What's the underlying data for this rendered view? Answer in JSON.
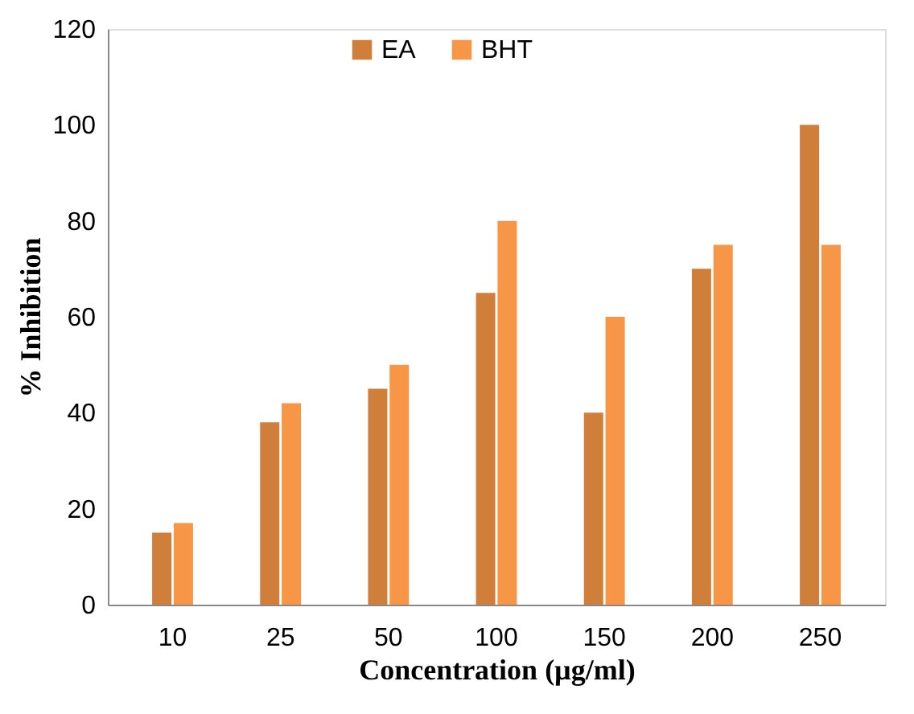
{
  "chart_data": {
    "type": "bar",
    "xlabel": "Concentration (µg/ml)",
    "ylabel": "% Inhibition",
    "categories": [
      "10",
      "25",
      "50",
      "100",
      "150",
      "200",
      "250"
    ],
    "series": [
      {
        "name": "EA",
        "color": "#d07f3a",
        "values": [
          15,
          38,
          45,
          65,
          40,
          70,
          100
        ]
      },
      {
        "name": "BHT",
        "color": "#f79646",
        "values": [
          17,
          42,
          50,
          80,
          60,
          75,
          75
        ]
      }
    ],
    "ylim": [
      0,
      120
    ],
    "yticks": [
      0,
      20,
      40,
      60,
      80,
      100,
      120
    ],
    "grid": false,
    "legend": "top"
  }
}
